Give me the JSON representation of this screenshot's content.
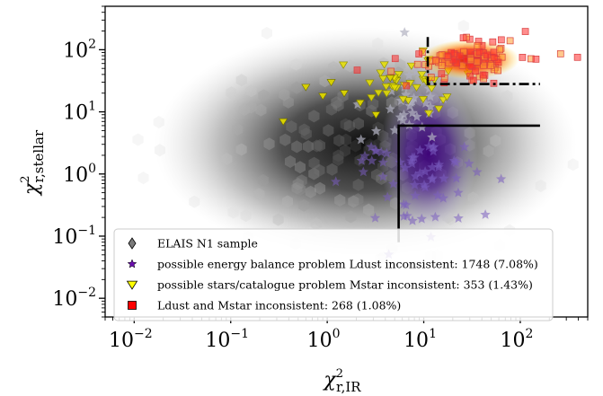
{
  "chart_data": {
    "type": "scatter",
    "title": "",
    "xlabel": "χ²r,IR",
    "ylabel": "χ²r,stellar",
    "xlabel_base": "χ",
    "xlabel_sup": "2",
    "xlabel_sub": "r,IR",
    "ylabel_base": "χ",
    "ylabel_sup": "2",
    "ylabel_sub": "r,stellar",
    "xscale": "log",
    "yscale": "log",
    "xlim": [
      0.005,
      500
    ],
    "ylim": [
      0.005,
      500
    ],
    "x_ticks": [
      {
        "value": 0.01,
        "base": "10",
        "exp": "−2"
      },
      {
        "value": 0.1,
        "base": "10",
        "exp": "−1"
      },
      {
        "value": 1,
        "base": "10",
        "exp": "0"
      },
      {
        "value": 10,
        "base": "10",
        "exp": "1"
      },
      {
        "value": 100,
        "base": "10",
        "exp": "2"
      }
    ],
    "y_ticks": [
      {
        "value": 0.01,
        "base": "10",
        "exp": "−2"
      },
      {
        "value": 0.1,
        "base": "10",
        "exp": "−1"
      },
      {
        "value": 1,
        "base": "10",
        "exp": "0"
      },
      {
        "value": 10,
        "base": "10",
        "exp": "1"
      },
      {
        "value": 100,
        "base": "10",
        "exp": "2"
      }
    ],
    "grid": false,
    "legend_position": "lower-left",
    "series": [
      {
        "name": "ELAIS N1 sample",
        "marker": "diamond",
        "color": "#555555",
        "style": "hexbin-density",
        "center": [
          2.5,
          3.0
        ]
      },
      {
        "name": "possible energy balance problem Ldust inconsistent: 1748 (7.08%)",
        "marker": "star",
        "color": "#4b0082",
        "center": [
          10,
          1.5
        ]
      },
      {
        "name": "possible stars/catalogue problem Mstar inconsistent: 353 (1.43%)",
        "marker": "triangle-down",
        "color": "#ffff00",
        "center": [
          8,
          30
        ]
      },
      {
        "name": "Ldust and Mstar inconsistent: 268 (1.08%)",
        "marker": "square",
        "color": "#ff0000",
        "center": [
          30,
          70
        ]
      }
    ],
    "threshold_lines": [
      {
        "style": "solid",
        "color": "#000000",
        "x": [
          5.5,
          5.5,
          160
        ],
        "y": [
          0.08,
          6,
          6
        ]
      },
      {
        "style": "dashdot",
        "color": "#000000",
        "x": [
          11,
          11,
          160
        ],
        "y": [
          160,
          28,
          28
        ]
      }
    ]
  }
}
